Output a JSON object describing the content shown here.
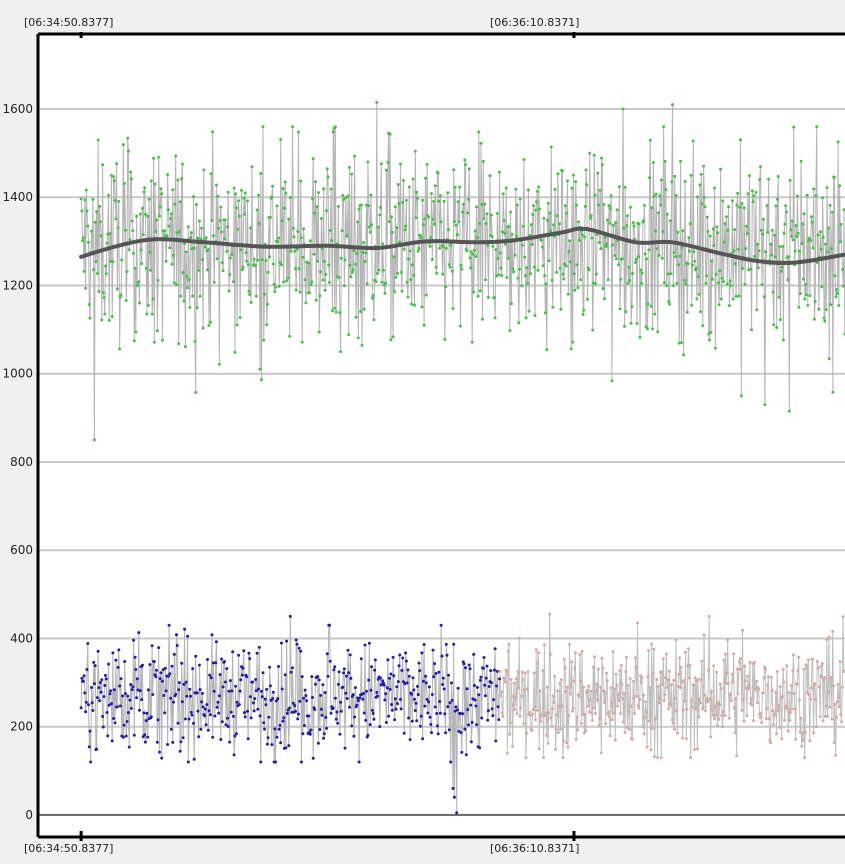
{
  "chart_data": {
    "type": "line",
    "title": "",
    "xlabel": "",
    "ylabel": "",
    "time_labels_top": [
      "[06:34:50.8377]",
      "[06:36:10.8371]"
    ],
    "time_labels_bottom": [
      "[06:34:50.8377]",
      "[06:36:10.8371]"
    ],
    "y_ticks": [
      0,
      200,
      400,
      600,
      800,
      1000,
      1200,
      1400,
      1600
    ],
    "ylim": [
      -50,
      1770
    ],
    "x_ticks_seconds": [
      0,
      80
    ],
    "xlim_seconds": [
      -7,
      124
    ],
    "grid": true,
    "series": [
      {
        "point_color": "#3cc83c",
        "line_color": "#b4b4b4",
        "x_range_seconds": [
          0,
          124
        ],
        "approx_mean": 1290,
        "approx_min": 850,
        "approx_max": 1615,
        "note_points": "dense noisy series approx. 1000-1600"
      },
      {
        "point_color": "#1e1eb4",
        "line_color": "#b4b4b4",
        "x_range_seconds": [
          0,
          68
        ],
        "approx_mean": 270,
        "approx_min": 5,
        "approx_max": 450
      },
      {
        "point_color": "#d8aaa0",
        "line_color": "#c0c0c0",
        "x_range_seconds": [
          68,
          124
        ],
        "approx_mean": 270,
        "approx_min": 130,
        "approx_max": 455
      },
      {
        "line_color": "#555555",
        "smoothed": true,
        "x": [
          0,
          6,
          12,
          20,
          30,
          40,
          48,
          56,
          64,
          70,
          78,
          82,
          90,
          96,
          104,
          110,
          116,
          124
        ],
        "y": [
          1265,
          1290,
          1305,
          1298,
          1288,
          1290,
          1285,
          1300,
          1298,
          1302,
          1320,
          1328,
          1298,
          1298,
          1272,
          1255,
          1252,
          1270
        ]
      }
    ]
  }
}
